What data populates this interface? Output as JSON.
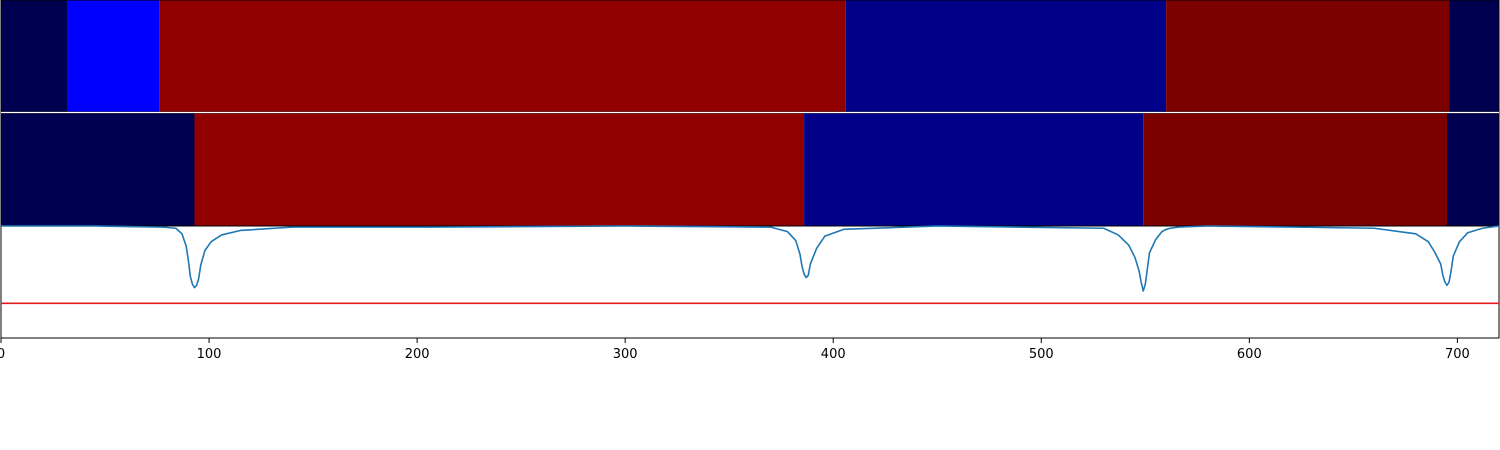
{
  "chart_data": {
    "type": "heatmap",
    "title": "",
    "xlabel": "",
    "ylabel": "",
    "xlim": [
      0,
      720
    ],
    "x_ticks": [
      0,
      100,
      200,
      300,
      400,
      500,
      600,
      700
    ],
    "grid": false,
    "legend": "none",
    "rows": [
      {
        "segments": [
          {
            "start": 0,
            "end": 32,
            "color": "#000050"
          },
          {
            "start": 32,
            "end": 76,
            "color": "#0000ff"
          },
          {
            "start": 76,
            "end": 406,
            "color": "#900000"
          },
          {
            "start": 406,
            "end": 560,
            "color": "#000088"
          },
          {
            "start": 560,
            "end": 696,
            "color": "#7c0000"
          },
          {
            "start": 696,
            "end": 720,
            "color": "#000050"
          }
        ]
      },
      {
        "segments": [
          {
            "start": 0,
            "end": 93,
            "color": "#000050"
          },
          {
            "start": 93,
            "end": 386,
            "color": "#900000"
          },
          {
            "start": 386,
            "end": 549,
            "color": "#000088"
          },
          {
            "start": 549,
            "end": 695,
            "color": "#7c0000"
          },
          {
            "start": 695,
            "end": 720,
            "color": "#000050"
          }
        ]
      }
    ],
    "line_panel": {
      "ylim": [
        0,
        1.0
      ],
      "series": [
        {
          "type": "line",
          "color": "#1f77b4",
          "x": [
            0,
            45,
            78,
            84,
            87,
            89,
            90,
            91,
            92,
            93,
            94,
            95,
            96,
            98,
            101,
            106,
            115,
            140,
            206,
            300,
            370,
            378,
            382,
            384,
            385,
            386,
            387,
            388,
            389,
            392,
            396,
            405,
            450,
            530,
            537,
            542,
            545,
            547,
            548,
            549,
            550,
            551,
            552,
            555,
            558,
            560,
            562,
            566,
            580,
            623,
            660,
            680,
            686,
            689,
            692,
            693,
            694,
            695,
            696,
            697,
            698,
            701,
            705,
            712,
            720
          ],
          "y": [
            1.0,
            1.0,
            0.99,
            0.98,
            0.93,
            0.82,
            0.7,
            0.55,
            0.48,
            0.45,
            0.47,
            0.53,
            0.65,
            0.78,
            0.86,
            0.92,
            0.96,
            0.99,
            0.99,
            1.0,
            0.99,
            0.95,
            0.87,
            0.75,
            0.64,
            0.57,
            0.54,
            0.56,
            0.66,
            0.8,
            0.91,
            0.97,
            1.0,
            0.98,
            0.92,
            0.83,
            0.72,
            0.6,
            0.5,
            0.42,
            0.48,
            0.62,
            0.76,
            0.88,
            0.95,
            0.97,
            0.98,
            0.99,
            1.0,
            0.99,
            0.98,
            0.93,
            0.86,
            0.77,
            0.66,
            0.56,
            0.5,
            0.47,
            0.5,
            0.6,
            0.73,
            0.86,
            0.94,
            0.98,
            1.0
          ]
        },
        {
          "type": "hline",
          "color": "#e31a1c",
          "y": 0.31
        }
      ]
    }
  }
}
